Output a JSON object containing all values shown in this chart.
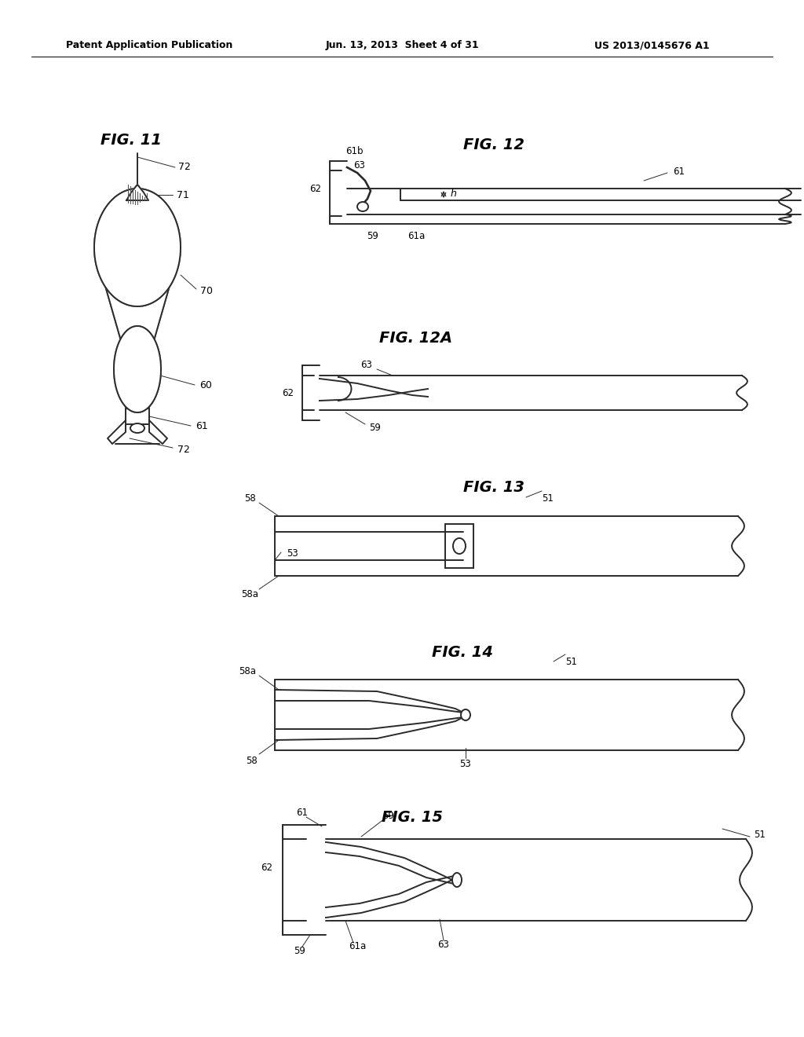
{
  "bg_color": "#ffffff",
  "line_color": "#2a2a2a",
  "header_left": "Patent Application Publication",
  "header_mid": "Jun. 13, 2013  Sheet 4 of 31",
  "header_right": "US 2013/0145676 A1",
  "lw_main": 1.4,
  "lw_thin": 0.9,
  "lw_label": 0.7
}
